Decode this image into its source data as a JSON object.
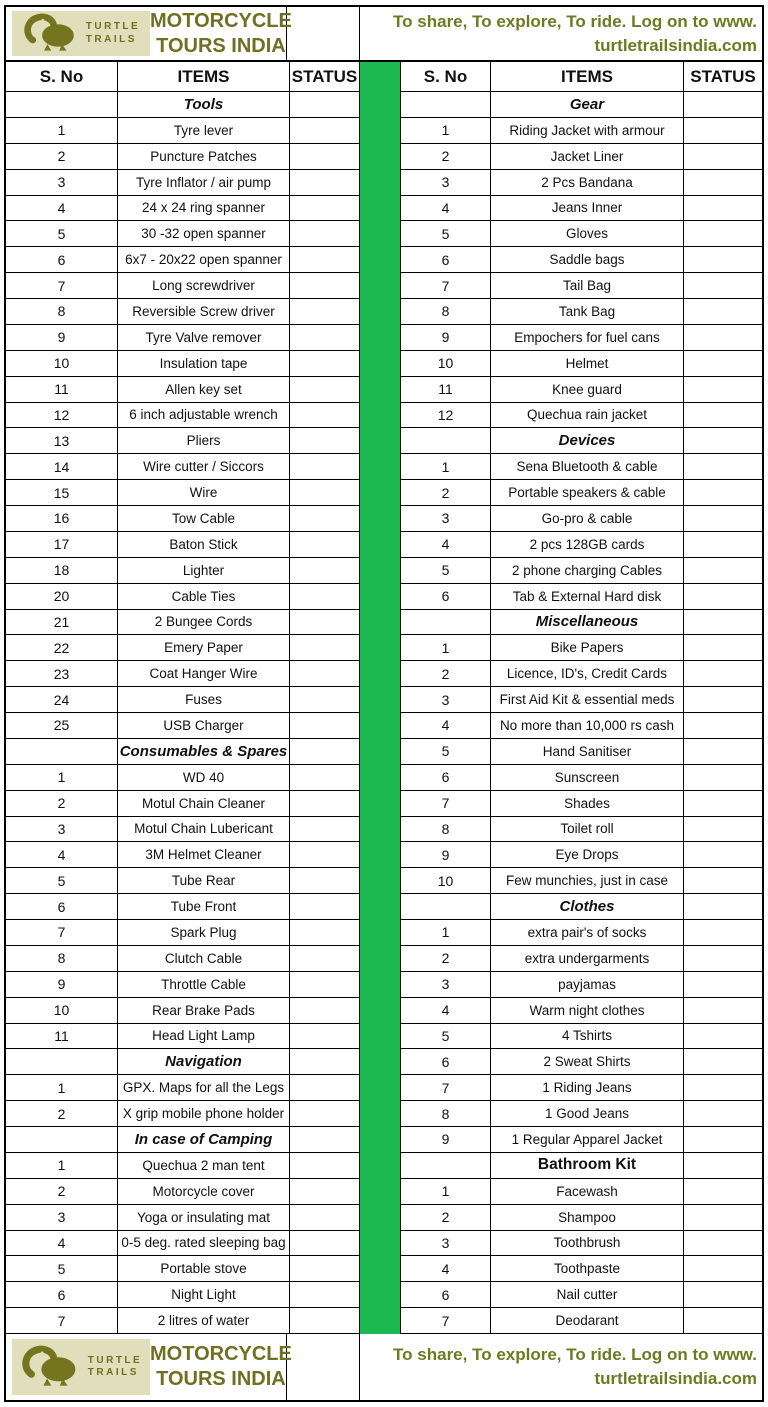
{
  "page": {
    "brand": {
      "logo_line1": "TURTLE",
      "logo_line2": "TRAILS",
      "title_line1": "MOTORCYCLE",
      "title_line2": "TOURS INDIA",
      "slogan_line1": "To share, To explore, To ride. Log on to www.",
      "slogan_line2": "turtletrailsindia.com"
    },
    "colors": {
      "olive_text": "#6f7021",
      "slogan_text": "#6e7a20",
      "divider_green": "#1cb950",
      "logo_background": "#e1debc",
      "border_black": "#000000"
    },
    "column_headers": {
      "sno": "S. No",
      "items": "ITEMS",
      "status": "STATUS"
    },
    "icons": {
      "logo_animal": "anteater-logo-icon"
    }
  },
  "left_table": {
    "rows": [
      {
        "type": "section",
        "label": "Tools"
      },
      {
        "type": "item",
        "no": "1",
        "label": "Tyre lever"
      },
      {
        "type": "item",
        "no": "2",
        "label": "Puncture Patches"
      },
      {
        "type": "item",
        "no": "3",
        "label": "Tyre Inflator / air pump"
      },
      {
        "type": "item",
        "no": "4",
        "label": "24 x 24 ring spanner"
      },
      {
        "type": "item",
        "no": "5",
        "label": "30 -32 open spanner"
      },
      {
        "type": "item",
        "no": "6",
        "label": "6x7 - 20x22 open spanner"
      },
      {
        "type": "item",
        "no": "7",
        "label": "Long screwdriver"
      },
      {
        "type": "item",
        "no": "8",
        "label": "Reversible Screw driver"
      },
      {
        "type": "item",
        "no": "9",
        "label": "Tyre Valve remover"
      },
      {
        "type": "item",
        "no": "10",
        "label": "Insulation tape"
      },
      {
        "type": "item",
        "no": "11",
        "label": "Allen key set"
      },
      {
        "type": "item",
        "no": "12",
        "label": "6 inch adjustable wrench"
      },
      {
        "type": "item",
        "no": "13",
        "label": "Pliers"
      },
      {
        "type": "item",
        "no": "14",
        "label": "Wire cutter / Siccors"
      },
      {
        "type": "item",
        "no": "15",
        "label": "Wire"
      },
      {
        "type": "item",
        "no": "16",
        "label": "Tow Cable"
      },
      {
        "type": "item",
        "no": "17",
        "label": "Baton Stick"
      },
      {
        "type": "item",
        "no": "18",
        "label": "Lighter"
      },
      {
        "type": "item",
        "no": "20",
        "label": "Cable Ties"
      },
      {
        "type": "item",
        "no": "21",
        "label": "2 Bungee Cords"
      },
      {
        "type": "item",
        "no": "22",
        "label": "Emery Paper"
      },
      {
        "type": "item",
        "no": "23",
        "label": "Coat Hanger Wire"
      },
      {
        "type": "item",
        "no": "24",
        "label": "Fuses"
      },
      {
        "type": "item",
        "no": "25",
        "label": "USB Charger"
      },
      {
        "type": "section",
        "label": "Consumables & Spares"
      },
      {
        "type": "item",
        "no": "1",
        "label": "WD 40"
      },
      {
        "type": "item",
        "no": "2",
        "label": "Motul Chain Cleaner"
      },
      {
        "type": "item",
        "no": "3",
        "label": "Motul Chain Lubericant"
      },
      {
        "type": "item",
        "no": "4",
        "label": "3M Helmet Cleaner"
      },
      {
        "type": "item",
        "no": "5",
        "label": "Tube Rear"
      },
      {
        "type": "item",
        "no": "6",
        "label": "Tube Front"
      },
      {
        "type": "item",
        "no": "7",
        "label": "Spark Plug"
      },
      {
        "type": "item",
        "no": "8",
        "label": "Clutch Cable"
      },
      {
        "type": "item",
        "no": "9",
        "label": "Throttle Cable"
      },
      {
        "type": "item",
        "no": "10",
        "label": "Rear Brake Pads"
      },
      {
        "type": "item",
        "no": "11",
        "label": "Head Light Lamp"
      },
      {
        "type": "section",
        "label": "Navigation"
      },
      {
        "type": "item",
        "no": "1",
        "label": "GPX. Maps for all the Legs"
      },
      {
        "type": "item",
        "no": "2",
        "label": "X grip mobile phone holder"
      },
      {
        "type": "section",
        "label": "In case of Camping"
      },
      {
        "type": "item",
        "no": "1",
        "label": "Quechua 2 man tent"
      },
      {
        "type": "item",
        "no": "2",
        "label": "Motorcycle cover"
      },
      {
        "type": "item",
        "no": "3",
        "label": "Yoga or insulating mat"
      },
      {
        "type": "item",
        "no": "4",
        "label": "0-5 deg. rated sleeping bag"
      },
      {
        "type": "item",
        "no": "5",
        "label": "Portable stove"
      },
      {
        "type": "item",
        "no": "6",
        "label": "Night Light"
      },
      {
        "type": "item",
        "no": "7",
        "label": "2 litres of water"
      }
    ]
  },
  "right_table": {
    "rows": [
      {
        "type": "section",
        "label": "Gear"
      },
      {
        "type": "item",
        "no": "1",
        "label": "Riding Jacket with armour"
      },
      {
        "type": "item",
        "no": "2",
        "label": "Jacket Liner"
      },
      {
        "type": "item",
        "no": "3",
        "label": "2 Pcs Bandana"
      },
      {
        "type": "item",
        "no": "4",
        "label": "Jeans Inner"
      },
      {
        "type": "item",
        "no": "5",
        "label": "Gloves"
      },
      {
        "type": "item",
        "no": "6",
        "label": "Saddle bags"
      },
      {
        "type": "item",
        "no": "7",
        "label": "Tail Bag"
      },
      {
        "type": "item",
        "no": "8",
        "label": "Tank Bag"
      },
      {
        "type": "item",
        "no": "9",
        "label": "Empochers for fuel cans"
      },
      {
        "type": "item",
        "no": "10",
        "label": "Helmet"
      },
      {
        "type": "item",
        "no": "11",
        "label": "Knee guard"
      },
      {
        "type": "item",
        "no": "12",
        "label": "Quechua rain jacket"
      },
      {
        "type": "section",
        "label": "Devices"
      },
      {
        "type": "item",
        "no": "1",
        "label": "Sena Bluetooth & cable"
      },
      {
        "type": "item",
        "no": "2",
        "label": "Portable speakers & cable"
      },
      {
        "type": "item",
        "no": "3",
        "label": "Go-pro & cable"
      },
      {
        "type": "item",
        "no": "4",
        "label": "2 pcs 128GB cards"
      },
      {
        "type": "item",
        "no": "5",
        "label": "2 phone charging Cables"
      },
      {
        "type": "item",
        "no": "6",
        "label": "Tab & External Hard disk"
      },
      {
        "type": "section",
        "label": "Miscellaneous"
      },
      {
        "type": "item",
        "no": "1",
        "label": "Bike Papers"
      },
      {
        "type": "item",
        "no": "2",
        "label": "Licence, ID's, Credit Cards"
      },
      {
        "type": "item",
        "no": "3",
        "label": "First Aid Kit & essential meds"
      },
      {
        "type": "item",
        "no": "4",
        "label": "No more than 10,000 rs cash"
      },
      {
        "type": "item",
        "no": "5",
        "label": "Hand Sanitiser"
      },
      {
        "type": "item",
        "no": "6",
        "label": "Sunscreen"
      },
      {
        "type": "item",
        "no": "7",
        "label": "Shades"
      },
      {
        "type": "item",
        "no": "8",
        "label": "Toilet roll"
      },
      {
        "type": "item",
        "no": "9",
        "label": "Eye Drops"
      },
      {
        "type": "item",
        "no": "10",
        "label": "Few munchies, just in case"
      },
      {
        "type": "section",
        "label": "Clothes"
      },
      {
        "type": "item",
        "no": "1",
        "label": "extra pair's of socks"
      },
      {
        "type": "item",
        "no": "2",
        "label": "extra undergarments"
      },
      {
        "type": "item",
        "no": "3",
        "label": "payjamas"
      },
      {
        "type": "item",
        "no": "4",
        "label": "Warm night clothes"
      },
      {
        "type": "item",
        "no": "5",
        "label": "4 Tshirts"
      },
      {
        "type": "item",
        "no": "6",
        "label": "2 Sweat Shirts"
      },
      {
        "type": "item",
        "no": "7",
        "label": "1 Riding Jeans"
      },
      {
        "type": "item",
        "no": "8",
        "label": "1 Good Jeans"
      },
      {
        "type": "item",
        "no": "9",
        "label": "1 Regular Apparel Jacket"
      },
      {
        "type": "section",
        "label": "Bathroom Kit",
        "italic": false
      },
      {
        "type": "item",
        "no": "1",
        "label": "Facewash"
      },
      {
        "type": "item",
        "no": "2",
        "label": "Shampoo"
      },
      {
        "type": "item",
        "no": "3",
        "label": "Toothbrush"
      },
      {
        "type": "item",
        "no": "4",
        "label": "Toothpaste"
      },
      {
        "type": "item",
        "no": "6",
        "label": "Nail cutter"
      },
      {
        "type": "item",
        "no": "7",
        "label": "Deodarant"
      }
    ]
  }
}
